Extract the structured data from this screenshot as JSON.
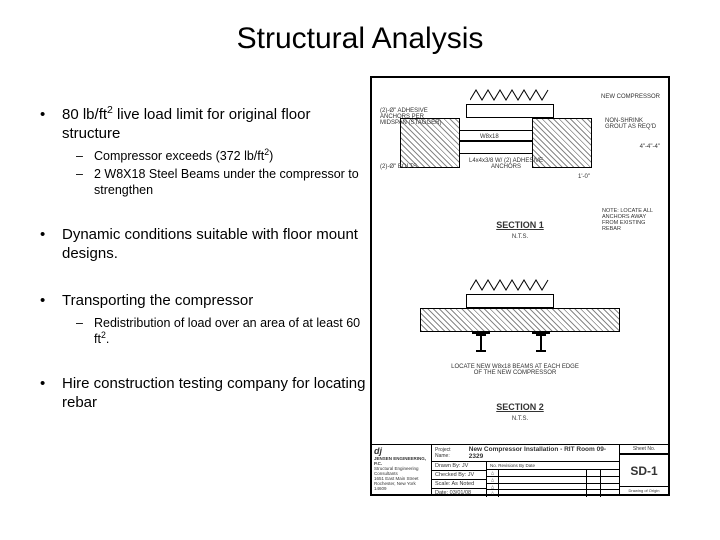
{
  "title": "Structural Analysis",
  "bullets": [
    {
      "text_html": "80 lb/ft<sup>2</sup> live load limit for original floor structure",
      "subs": [
        "Compressor exceeds (372 lb/ft<sup>2</sup>)",
        "2 W8X18 Steel Beams under the compressor to strengthen"
      ]
    },
    {
      "text_html": "Dynamic conditions suitable with floor mount designs.",
      "subs": []
    },
    {
      "text_html": "Transporting the compressor",
      "subs": [
        "Redistribution of load over an area of at least 60 ft<sup>2</sup>."
      ]
    },
    {
      "text_html": "Hire construction testing company for locating rebar",
      "subs": []
    }
  ],
  "drawing": {
    "new_compressor": "NEW COMPRESSOR",
    "section1_title": "SECTION 1",
    "section2_title": "SECTION 2",
    "nts": "N.T.S.",
    "note": "NOTE: LOCATE ALL ANCHORS AWAY FROM EXISTING REBAR",
    "labels": {
      "adhesive_anchors": "(2)-Ø\" ADHESIVE ANCHORS PER MIDSPAN (STAGGER)",
      "bolts": "(2)-Ø\" BOLTS",
      "w8x18": "W8x18",
      "plate": "L4x4x3/8 W/ (2) ADHESIVE ANCHORS",
      "dim1": "1'-0\"",
      "dim2": "4\"-4\"-4\"",
      "grout": "NON-SHRINK GROUT AS REQ'D",
      "locate_beams": "LOCATE NEW W8x18 BEAMS AT EACH EDGE OF THE NEW COMPRESSOR"
    },
    "titleblock": {
      "project_label": "Project Name:",
      "project_name": "New Compressor Installation - RIT Room 09-2329",
      "firm_name": "JENSEN ENGINEERING, P.C.",
      "firm_sub": "Structural Engineering Consultants",
      "firm_addr": "1651 East Main Street\nRochester, New York 14609",
      "drawn_by": "Drawn By: JV",
      "checked_by": "Checked By: JV",
      "scale": "Scale: As Noted",
      "date": "Date: 03/01/08",
      "revisions": "No. Revisions By Date",
      "sheet_label": "Sheet No.",
      "sheet": "SD-1",
      "drawing_of": "Drawing of Origin"
    }
  }
}
